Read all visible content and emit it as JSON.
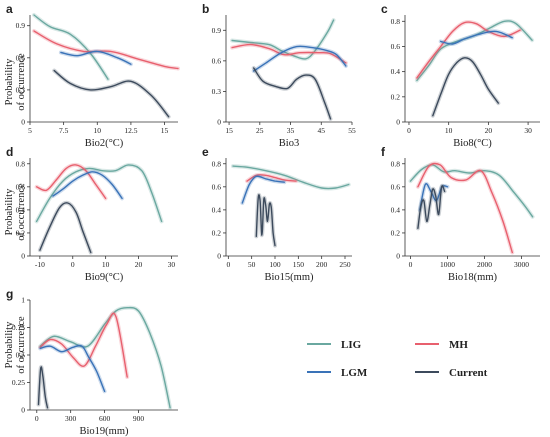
{
  "figure": {
    "ylabel_line1": "Probability",
    "ylabel_line2": "of occurrence"
  },
  "legend": {
    "entries": [
      {
        "key": "LIG",
        "label": "LIG",
        "color": "#6aa8a0"
      },
      {
        "key": "MH",
        "label": "MH",
        "color": "#e8606e"
      },
      {
        "key": "LGM",
        "label": "LGM",
        "color": "#3a73b8"
      },
      {
        "key": "Current",
        "label": "Current",
        "color": "#3c4a5c"
      }
    ]
  },
  "chart_data": [
    {
      "type": "line",
      "panel": "a",
      "xlabel": "Bio2(°C)",
      "xlim": [
        5,
        16
      ],
      "ylim": [
        0,
        1.0
      ],
      "xticks": [
        5,
        7.5,
        10,
        12.5,
        15
      ],
      "xtick_labels": [
        "5",
        "7.5",
        "10",
        "12.5",
        "15"
      ],
      "yticks": [
        0,
        0.3,
        0.6,
        0.9
      ],
      "ytick_labels": [
        "0",
        "0.3",
        "0.6",
        "0.9"
      ],
      "series": [
        {
          "key": "LIG",
          "x": [
            5.3,
            6.5,
            8,
            9.5,
            10.8
          ],
          "y": [
            1.0,
            0.89,
            0.82,
            0.64,
            0.4
          ]
        },
        {
          "key": "MH",
          "x": [
            5.3,
            7,
            9,
            11,
            13,
            15,
            16
          ],
          "y": [
            0.85,
            0.73,
            0.66,
            0.66,
            0.59,
            0.52,
            0.5
          ]
        },
        {
          "key": "LGM",
          "x": [
            7.3,
            8.5,
            10,
            11.5,
            12.5
          ],
          "y": [
            0.65,
            0.62,
            0.66,
            0.6,
            0.54
          ]
        },
        {
          "key": "Current",
          "x": [
            6.8,
            8,
            9.5,
            11,
            12.5,
            14,
            15.3
          ],
          "y": [
            0.48,
            0.36,
            0.3,
            0.33,
            0.38,
            0.25,
            0.05
          ]
        }
      ]
    },
    {
      "type": "line",
      "panel": "b",
      "xlabel": "Bio3",
      "xlim": [
        14,
        55
      ],
      "ylim": [
        0,
        1.05
      ],
      "xticks": [
        15,
        25,
        35,
        45,
        55
      ],
      "xtick_labels": [
        "15",
        "25",
        "35",
        "45",
        "55"
      ],
      "yticks": [
        0,
        0.3,
        0.6,
        0.9
      ],
      "ytick_labels": [
        "0",
        "0.3",
        "0.6",
        "0.9"
      ],
      "series": [
        {
          "key": "LIG",
          "x": [
            16,
            22,
            28,
            32,
            36,
            40,
            43,
            47,
            49
          ],
          "y": [
            0.8,
            0.78,
            0.76,
            0.7,
            0.65,
            0.62,
            0.7,
            0.88,
            1.0
          ]
        },
        {
          "key": "MH",
          "x": [
            16,
            22,
            28,
            33,
            38,
            44,
            48,
            53
          ],
          "y": [
            0.73,
            0.76,
            0.72,
            0.66,
            0.68,
            0.68,
            0.67,
            0.58
          ]
        },
        {
          "key": "LGM",
          "x": [
            23,
            27,
            32,
            37,
            42,
            47,
            50,
            53
          ],
          "y": [
            0.5,
            0.58,
            0.68,
            0.74,
            0.73,
            0.7,
            0.66,
            0.55
          ]
        },
        {
          "key": "Current",
          "x": [
            23,
            26,
            30,
            34,
            37,
            40,
            43,
            46,
            48
          ],
          "y": [
            0.53,
            0.4,
            0.35,
            0.33,
            0.42,
            0.46,
            0.42,
            0.2,
            0.03
          ]
        }
      ]
    },
    {
      "type": "line",
      "panel": "c",
      "xlabel": "Bio8(°C)",
      "xlim": [
        -1,
        33
      ],
      "ylim": [
        0,
        0.85
      ],
      "xticks": [
        0,
        10,
        20,
        30
      ],
      "xtick_labels": [
        "0",
        "10",
        "20",
        "30"
      ],
      "yticks": [
        0,
        0.2,
        0.4,
        0.6,
        0.8
      ],
      "ytick_labels": [
        "0",
        "0.2",
        "0.4",
        "0.6",
        "0.8"
      ],
      "series": [
        {
          "key": "LIG",
          "x": [
            2,
            5,
            8,
            12,
            16,
            20,
            24,
            27,
            31
          ],
          "y": [
            0.33,
            0.45,
            0.58,
            0.64,
            0.68,
            0.74,
            0.8,
            0.78,
            0.65
          ]
        },
        {
          "key": "MH",
          "x": [
            2,
            5,
            8,
            11,
            14,
            17,
            20,
            24,
            28
          ],
          "y": [
            0.35,
            0.48,
            0.6,
            0.72,
            0.79,
            0.78,
            0.72,
            0.68,
            0.73
          ]
        },
        {
          "key": "LGM",
          "x": [
            8,
            11,
            14,
            18,
            22,
            26
          ],
          "y": [
            0.64,
            0.62,
            0.66,
            0.7,
            0.72,
            0.67
          ]
        },
        {
          "key": "Current",
          "x": [
            6,
            8,
            10,
            12,
            14,
            16,
            18,
            20,
            22.5
          ],
          "y": [
            0.05,
            0.22,
            0.38,
            0.47,
            0.51,
            0.48,
            0.38,
            0.26,
            0.15
          ]
        }
      ]
    },
    {
      "type": "line",
      "panel": "d",
      "xlabel": "Bio9(°C)",
      "xlim": [
        -13,
        32
      ],
      "ylim": [
        0,
        0.85
      ],
      "xticks": [
        -10,
        0,
        10,
        20,
        30
      ],
      "xtick_labels": [
        "-10",
        "0",
        "10",
        "20",
        "30"
      ],
      "yticks": [
        0,
        0.2,
        0.4,
        0.6,
        0.8
      ],
      "ytick_labels": [
        "0",
        "0.2",
        "0.4",
        "0.6",
        "0.8"
      ],
      "series": [
        {
          "key": "LIG",
          "x": [
            -11,
            -7,
            -3,
            1,
            5,
            9,
            13,
            17,
            21,
            24,
            27
          ],
          "y": [
            0.3,
            0.5,
            0.65,
            0.73,
            0.76,
            0.74,
            0.74,
            0.79,
            0.74,
            0.55,
            0.3
          ]
        },
        {
          "key": "MH",
          "x": [
            -11,
            -8,
            -5,
            -2,
            1,
            4,
            7,
            10
          ],
          "y": [
            0.6,
            0.57,
            0.66,
            0.76,
            0.79,
            0.74,
            0.62,
            0.5
          ]
        },
        {
          "key": "LGM",
          "x": [
            -6,
            -3,
            0,
            3,
            6,
            9,
            12,
            15
          ],
          "y": [
            0.52,
            0.58,
            0.65,
            0.7,
            0.73,
            0.7,
            0.62,
            0.5
          ]
        },
        {
          "key": "Current",
          "x": [
            -10,
            -7,
            -4,
            -1.5,
            1,
            3,
            5.5
          ],
          "y": [
            0.05,
            0.25,
            0.42,
            0.46,
            0.38,
            0.22,
            0.03
          ]
        }
      ]
    },
    {
      "type": "line",
      "panel": "e",
      "xlabel": "Bio15(mm)",
      "xlim": [
        -5,
        265
      ],
      "ylim": [
        0,
        0.85
      ],
      "xticks": [
        0,
        50,
        100,
        150,
        200,
        250
      ],
      "xtick_labels": [
        "0",
        "50",
        "100",
        "150",
        "200",
        "250"
      ],
      "yticks": [
        0,
        0.2,
        0.4,
        0.6,
        0.8
      ],
      "ytick_labels": [
        "0",
        "0.2",
        "0.4",
        "0.6",
        "0.8"
      ],
      "series": [
        {
          "key": "LIG",
          "x": [
            10,
            40,
            80,
            120,
            160,
            200,
            230,
            258
          ],
          "y": [
            0.78,
            0.77,
            0.74,
            0.7,
            0.64,
            0.59,
            0.59,
            0.62
          ]
        },
        {
          "key": "MH",
          "x": [
            40,
            60,
            80,
            100,
            120,
            145
          ],
          "y": [
            0.65,
            0.7,
            0.7,
            0.68,
            0.66,
            0.65
          ]
        },
        {
          "key": "LGM",
          "x": [
            30,
            45,
            60,
            80,
            100,
            120
          ],
          "y": [
            0.46,
            0.62,
            0.69,
            0.67,
            0.65,
            0.64
          ]
        },
        {
          "key": "Current",
          "x": [
            60,
            64,
            68,
            72,
            76,
            80,
            84,
            88,
            92,
            96,
            100
          ],
          "y": [
            0.17,
            0.5,
            0.48,
            0.18,
            0.49,
            0.44,
            0.3,
            0.45,
            0.42,
            0.2,
            0.09
          ]
        }
      ]
    },
    {
      "type": "line",
      "panel": "f",
      "xlabel": "Bio18(mm)",
      "xlim": [
        -150,
        3500
      ],
      "ylim": [
        0,
        0.85
      ],
      "xticks": [
        0,
        1000,
        2000,
        3000
      ],
      "xtick_labels": [
        "0",
        "1000",
        "2000",
        "3000"
      ],
      "yticks": [
        0,
        0.2,
        0.4,
        0.6,
        0.8
      ],
      "ytick_labels": [
        "0",
        "0.2",
        "0.4",
        "0.6",
        "0.8"
      ],
      "series": [
        {
          "key": "LIG",
          "x": [
            0,
            300,
            600,
            900,
            1200,
            1600,
            2000,
            2400,
            2800,
            3100,
            3300
          ],
          "y": [
            0.65,
            0.75,
            0.79,
            0.73,
            0.74,
            0.72,
            0.74,
            0.7,
            0.55,
            0.43,
            0.34
          ]
        },
        {
          "key": "MH",
          "x": [
            200,
            500,
            800,
            1100,
            1500,
            1900,
            2200,
            2500,
            2750
          ],
          "y": [
            0.6,
            0.78,
            0.79,
            0.68,
            0.66,
            0.74,
            0.55,
            0.3,
            0.03
          ]
        },
        {
          "key": "LGM",
          "x": [
            250,
            400,
            550,
            700,
            850,
            1000
          ],
          "y": [
            0.4,
            0.62,
            0.56,
            0.48,
            0.6,
            0.6
          ]
        },
        {
          "key": "Current",
          "x": [
            200,
            280,
            360,
            440,
            520,
            600,
            680,
            760,
            840,
            920
          ],
          "y": [
            0.24,
            0.43,
            0.48,
            0.3,
            0.44,
            0.58,
            0.52,
            0.36,
            0.6,
            0.56
          ]
        }
      ]
    },
    {
      "type": "line",
      "panel": "g",
      "xlabel": "Bio19(mm)",
      "xlim": [
        -60,
        1250
      ],
      "ylim": [
        0,
        1.0
      ],
      "xticks": [
        0,
        300,
        600,
        900
      ],
      "xtick_labels": [
        "0",
        "300",
        "600",
        "900"
      ],
      "yticks": [
        0,
        0.25,
        0.5,
        0.75,
        1
      ],
      "ytick_labels": [
        "0",
        "0.25",
        "0.5",
        "0.75",
        "1"
      ],
      "series": [
        {
          "key": "LIG",
          "x": [
            30,
            150,
            300,
            450,
            600,
            700,
            800,
            900,
            1000,
            1100,
            1180
          ],
          "y": [
            0.58,
            0.67,
            0.62,
            0.58,
            0.78,
            0.9,
            0.93,
            0.9,
            0.7,
            0.4,
            0.02
          ]
        },
        {
          "key": "MH",
          "x": [
            30,
            120,
            220,
            320,
            420,
            520,
            620,
            700,
            800
          ],
          "y": [
            0.57,
            0.64,
            0.6,
            0.48,
            0.4,
            0.58,
            0.78,
            0.85,
            0.3
          ]
        },
        {
          "key": "LGM",
          "x": [
            30,
            120,
            220,
            320,
            400,
            460,
            530,
            600
          ],
          "y": [
            0.56,
            0.58,
            0.53,
            0.57,
            0.58,
            0.48,
            0.35,
            0.17
          ]
        },
        {
          "key": "Current",
          "x": [
            15,
            35,
            55,
            75,
            95
          ],
          "y": [
            0.05,
            0.38,
            0.3,
            0.12,
            0.02
          ]
        }
      ]
    }
  ]
}
